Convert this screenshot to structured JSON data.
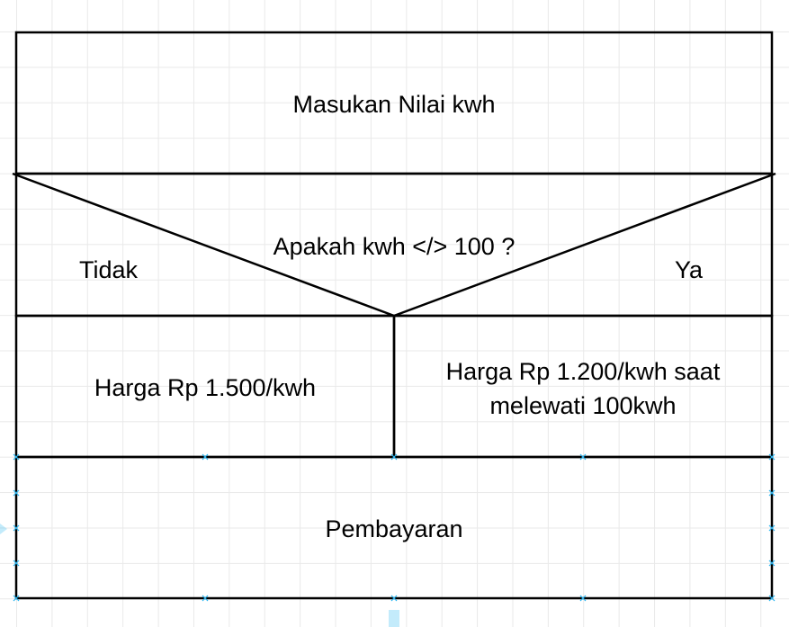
{
  "diagram": {
    "input_block": {
      "text": "Masukan Nilai kwh"
    },
    "decision": {
      "question": "Apakah kwh </> 100 ?",
      "no_label": "Tidak",
      "yes_label": "Ya"
    },
    "branch_no": {
      "text": "Harga Rp 1.500/kwh"
    },
    "branch_yes": {
      "text": "Harga Rp 1.200/kwh saat melewati 100kwh"
    },
    "output_block": {
      "text": "Pembayaran"
    }
  },
  "colors": {
    "stroke": "#000000",
    "selection_handle": "#29b6f2",
    "grid": "#e9e9e9"
  }
}
